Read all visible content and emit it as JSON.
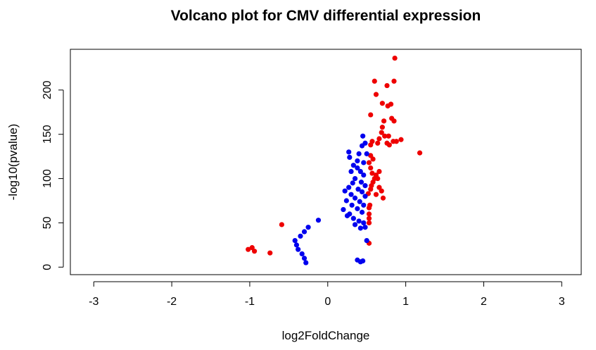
{
  "chart_data": {
    "type": "scatter",
    "title": "Volcano plot for CMV differential expression",
    "xlabel": "log2FoldChange",
    "ylabel": "-log10(pvalue)",
    "xlim": [
      -3.3,
      3.25
    ],
    "ylim": [
      -8.5,
      246
    ],
    "xticks": [
      "-3",
      "-2",
      "-1",
      "0",
      "1",
      "2",
      "3"
    ],
    "yticks": [
      "0",
      "50",
      "100",
      "150",
      "200"
    ],
    "colors": {
      "significant": "#ee0000",
      "not_significant": "#0000ee"
    },
    "series": [
      {
        "color": "#ee0000",
        "points": [
          [
            -1.02,
            20
          ],
          [
            -0.97,
            22
          ],
          [
            -0.94,
            18
          ],
          [
            -0.74,
            16
          ],
          [
            -0.59,
            48
          ],
          [
            0.53,
            27
          ],
          [
            0.53,
            50
          ],
          [
            0.53,
            55
          ],
          [
            0.53,
            60
          ],
          [
            0.53,
            67
          ],
          [
            0.54,
            70
          ],
          [
            0.52,
            83
          ],
          [
            0.55,
            88
          ],
          [
            0.56,
            92
          ],
          [
            0.58,
            96
          ],
          [
            0.6,
            100
          ],
          [
            0.62,
            104
          ],
          [
            0.57,
            106
          ],
          [
            0.55,
            112
          ],
          [
            0.53,
            118
          ],
          [
            0.58,
            122
          ],
          [
            0.55,
            126
          ],
          [
            0.62,
            82
          ],
          [
            0.66,
            90
          ],
          [
            0.69,
            86
          ],
          [
            0.71,
            78
          ],
          [
            0.66,
            108
          ],
          [
            0.64,
            100
          ],
          [
            0.55,
            138
          ],
          [
            0.57,
            142
          ],
          [
            0.64,
            140
          ],
          [
            0.66,
            145
          ],
          [
            0.73,
            148
          ],
          [
            0.69,
            152
          ],
          [
            0.76,
            140
          ],
          [
            0.79,
            138
          ],
          [
            0.84,
            142
          ],
          [
            0.78,
            148
          ],
          [
            0.88,
            142
          ],
          [
            0.94,
            144
          ],
          [
            0.7,
            158
          ],
          [
            0.72,
            165
          ],
          [
            0.82,
            168
          ],
          [
            0.85,
            165
          ],
          [
            0.55,
            172
          ],
          [
            0.77,
            182
          ],
          [
            0.81,
            184
          ],
          [
            0.7,
            185
          ],
          [
            0.62,
            195
          ],
          [
            0.6,
            210
          ],
          [
            0.76,
            205
          ],
          [
            0.85,
            210
          ],
          [
            0.86,
            236
          ],
          [
            1.18,
            129
          ]
        ]
      },
      {
        "color": "#0000ee",
        "points": [
          [
            0.45,
            148
          ],
          [
            0.48,
            140
          ],
          [
            0.44,
            137
          ],
          [
            0.4,
            128
          ],
          [
            0.5,
            128
          ],
          [
            0.27,
            130
          ],
          [
            0.28,
            124
          ],
          [
            0.38,
            120
          ],
          [
            0.46,
            118
          ],
          [
            0.33,
            115
          ],
          [
            0.38,
            112
          ],
          [
            0.42,
            108
          ],
          [
            0.46,
            104
          ],
          [
            0.3,
            108
          ],
          [
            0.35,
            100
          ],
          [
            0.43,
            96
          ],
          [
            0.48,
            92
          ],
          [
            0.32,
            95
          ],
          [
            0.27,
            90
          ],
          [
            0.39,
            88
          ],
          [
            0.44,
            85
          ],
          [
            0.48,
            80
          ],
          [
            0.22,
            86
          ],
          [
            0.3,
            82
          ],
          [
            0.35,
            78
          ],
          [
            0.41,
            74
          ],
          [
            0.46,
            70
          ],
          [
            0.24,
            75
          ],
          [
            0.31,
            70
          ],
          [
            0.38,
            66
          ],
          [
            0.44,
            62
          ],
          [
            0.28,
            60
          ],
          [
            0.33,
            55
          ],
          [
            0.4,
            52
          ],
          [
            0.46,
            50
          ],
          [
            0.2,
            65
          ],
          [
            0.25,
            58
          ],
          [
            0.48,
            45
          ],
          [
            0.42,
            44
          ],
          [
            0.35,
            48
          ],
          [
            -0.12,
            53
          ],
          [
            -0.25,
            45
          ],
          [
            -0.3,
            40
          ],
          [
            -0.35,
            35
          ],
          [
            -0.42,
            30
          ],
          [
            -0.4,
            25
          ],
          [
            -0.38,
            20
          ],
          [
            -0.33,
            15
          ],
          [
            -0.3,
            10
          ],
          [
            -0.28,
            5
          ],
          [
            0.38,
            8
          ],
          [
            0.42,
            6
          ],
          [
            0.45,
            7
          ],
          [
            0.5,
            30
          ]
        ]
      }
    ]
  }
}
